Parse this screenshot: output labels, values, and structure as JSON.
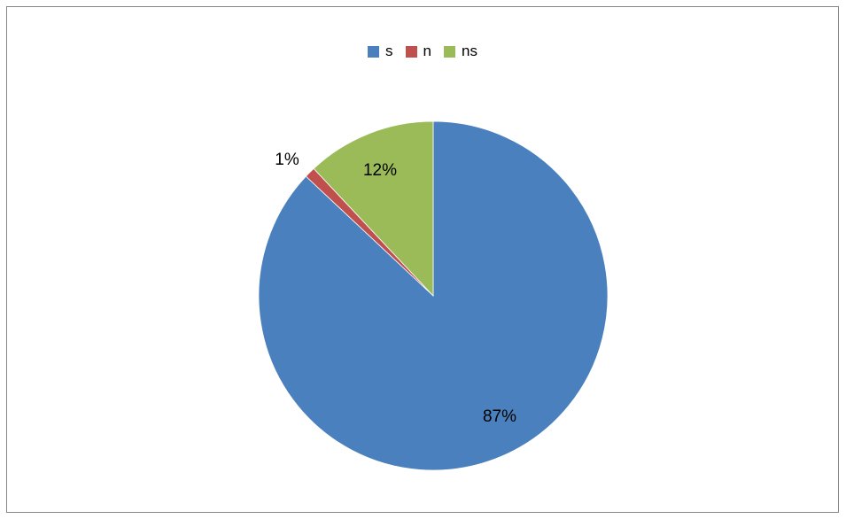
{
  "chart_data": {
    "type": "pie",
    "categories": [
      "s",
      "n",
      "ns"
    ],
    "values": [
      87,
      1,
      12
    ],
    "data_labels": [
      "87%",
      "1%",
      "12%"
    ],
    "colors": [
      "#4a80bd",
      "#c0504d",
      "#9bbb59"
    ],
    "legend_position": "top"
  }
}
